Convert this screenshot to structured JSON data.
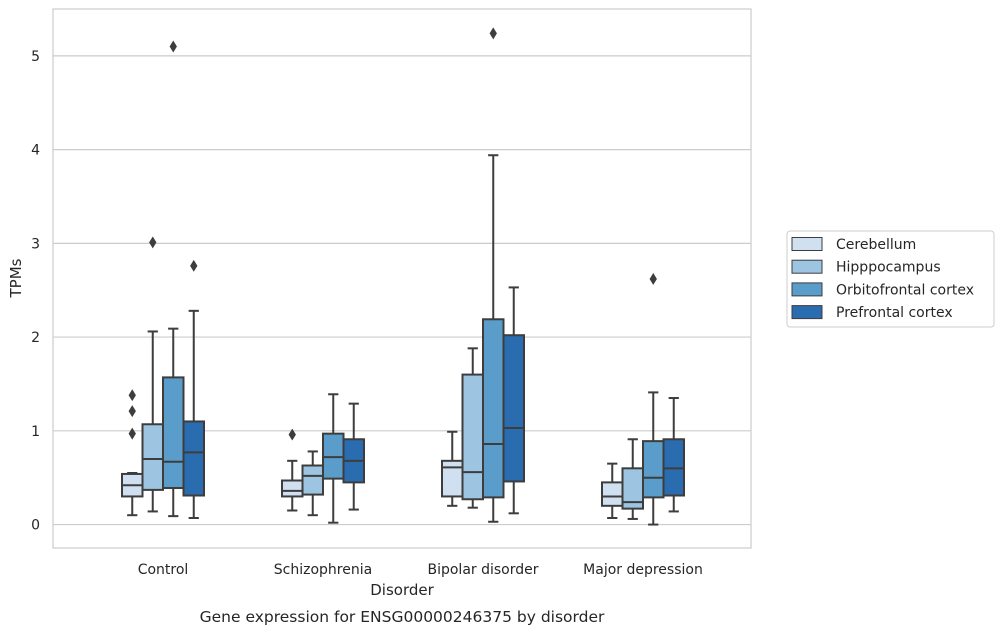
{
  "chart_data": {
    "type": "box",
    "caption": "Gene expression for ENSG00000246375 by disorder",
    "xlabel": "Disorder",
    "ylabel": "TPMs",
    "ylim": [
      -0.25,
      5.5
    ],
    "yticks": [
      0,
      1,
      2,
      3,
      4,
      5
    ],
    "grid": "horizontal",
    "legend_position": "right",
    "categories": [
      "Control",
      "Schizophrenia",
      "Bipolar disorder",
      "Major depression"
    ],
    "series": [
      {
        "name": "Cerebellum",
        "color": "#d0e0f1",
        "boxes": [
          {
            "q1": 0.3,
            "median": 0.42,
            "q3": 0.54,
            "whisker_low": 0.1,
            "whisker_high": 0.55,
            "outliers": [
              0.97,
              1.21,
              1.38
            ]
          },
          {
            "q1": 0.3,
            "median": 0.36,
            "q3": 0.47,
            "whisker_low": 0.15,
            "whisker_high": 0.68,
            "outliers": [
              0.96
            ]
          },
          {
            "q1": 0.3,
            "median": 0.61,
            "q3": 0.68,
            "whisker_low": 0.2,
            "whisker_high": 0.99,
            "outliers": []
          },
          {
            "q1": 0.2,
            "median": 0.3,
            "q3": 0.45,
            "whisker_low": 0.07,
            "whisker_high": 0.65,
            "outliers": []
          }
        ]
      },
      {
        "name": "Hipppocampus",
        "color": "#9dc4e0",
        "boxes": [
          {
            "q1": 0.37,
            "median": 0.7,
            "q3": 1.07,
            "whisker_low": 0.14,
            "whisker_high": 2.06,
            "outliers": [
              3.01
            ]
          },
          {
            "q1": 0.32,
            "median": 0.52,
            "q3": 0.63,
            "whisker_low": 0.1,
            "whisker_high": 0.78,
            "outliers": []
          },
          {
            "q1": 0.27,
            "median": 0.56,
            "q3": 1.6,
            "whisker_low": 0.18,
            "whisker_high": 1.88,
            "outliers": []
          },
          {
            "q1": 0.17,
            "median": 0.24,
            "q3": 0.6,
            "whisker_low": 0.06,
            "whisker_high": 0.91,
            "outliers": []
          }
        ]
      },
      {
        "name": "Orbitofrontal cortex",
        "color": "#5a9dcb",
        "boxes": [
          {
            "q1": 0.39,
            "median": 0.67,
            "q3": 1.57,
            "whisker_low": 0.09,
            "whisker_high": 2.09,
            "outliers": [
              5.1
            ]
          },
          {
            "q1": 0.49,
            "median": 0.72,
            "q3": 0.97,
            "whisker_low": 0.02,
            "whisker_high": 1.39,
            "outliers": []
          },
          {
            "q1": 0.29,
            "median": 0.86,
            "q3": 2.19,
            "whisker_low": 0.03,
            "whisker_high": 3.94,
            "outliers": [
              5.24
            ]
          },
          {
            "q1": 0.29,
            "median": 0.5,
            "q3": 0.89,
            "whisker_low": 0.0,
            "whisker_high": 1.41,
            "outliers": [
              2.62
            ]
          }
        ]
      },
      {
        "name": "Prefrontal cortex",
        "color": "#2a6cb0",
        "boxes": [
          {
            "q1": 0.31,
            "median": 0.77,
            "q3": 1.1,
            "whisker_low": 0.07,
            "whisker_high": 2.28,
            "outliers": [
              2.76
            ]
          },
          {
            "q1": 0.45,
            "median": 0.68,
            "q3": 0.91,
            "whisker_low": 0.16,
            "whisker_high": 1.29,
            "outliers": []
          },
          {
            "q1": 0.46,
            "median": 1.03,
            "q3": 2.02,
            "whisker_low": 0.12,
            "whisker_high": 2.53,
            "outliers": []
          },
          {
            "q1": 0.31,
            "median": 0.6,
            "q3": 0.91,
            "whisker_low": 0.14,
            "whisker_high": 1.35,
            "outliers": []
          }
        ]
      }
    ]
  }
}
